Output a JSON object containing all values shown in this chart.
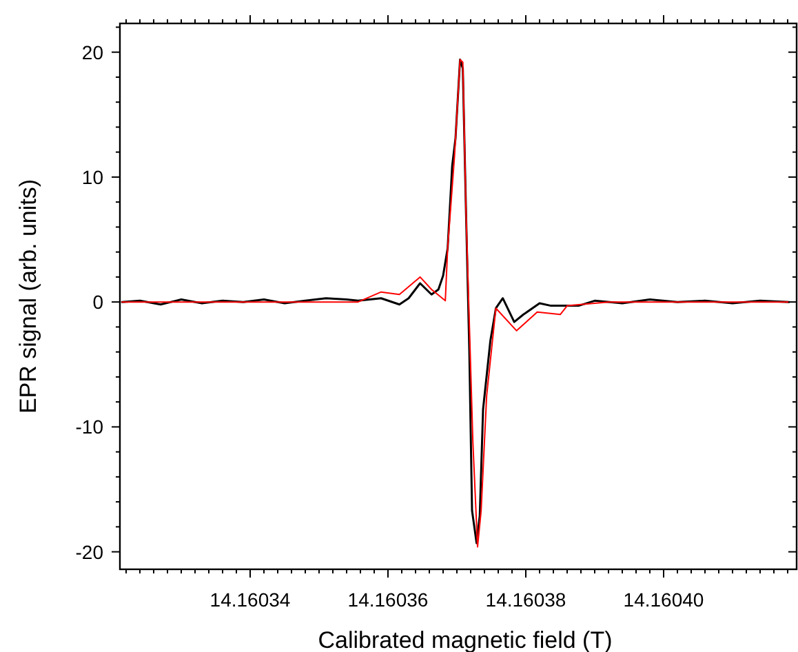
{
  "chart_data": {
    "type": "line",
    "xlabel": "Calibrated magnetic field (T)",
    "ylabel": "EPR signal (arb. units)",
    "xlim": [
      14.1603211,
      14.1604193
    ],
    "ylim": [
      -21.4,
      22.3
    ],
    "xticks": [
      {
        "value": 14.160322,
        "label": null
      },
      {
        "value": 14.160324,
        "label": null
      },
      {
        "value": 14.160326,
        "label": null
      },
      {
        "value": 14.160328,
        "label": null
      },
      {
        "value": 14.16033,
        "label": null
      },
      {
        "value": 14.160332,
        "label": null
      },
      14.16034,
      {
        "value": 14.160334,
        "label": null
      },
      {
        "value": 14.160336,
        "label": null
      },
      {
        "value": 14.160338,
        "label": null
      },
      {
        "value": 14.160342,
        "label": null
      },
      {
        "value": 14.160344,
        "label": null
      },
      {
        "value": 14.160346,
        "label": null
      },
      {
        "value": 14.160348,
        "label": null
      },
      {
        "value": 14.16035,
        "label": null
      },
      {
        "value": 14.160352,
        "label": null
      },
      {
        "value": 14.160354,
        "label": null
      },
      {
        "value": 14.160356,
        "label": null
      },
      {
        "value": 14.160358,
        "label": null
      },
      14.16036,
      {
        "value": 14.160362,
        "label": null
      },
      {
        "value": 14.160364,
        "label": null
      },
      {
        "value": 14.160366,
        "label": null
      },
      {
        "value": 14.160368,
        "label": null
      },
      {
        "value": 14.16037,
        "label": null
      },
      {
        "value": 14.160372,
        "label": null
      },
      {
        "value": 14.160374,
        "label": null
      },
      {
        "value": 14.160376,
        "label": null
      },
      {
        "value": 14.160378,
        "label": null
      },
      14.16038,
      {
        "value": 14.160382,
        "label": null
      },
      {
        "value": 14.160384,
        "label": null
      },
      {
        "value": 14.160386,
        "label": null
      },
      {
        "value": 14.160388,
        "label": null
      },
      {
        "value": 14.16039,
        "label": null
      },
      {
        "value": 14.160392,
        "label": null
      },
      {
        "value": 14.160394,
        "label": null
      },
      {
        "value": 14.160396,
        "label": null
      },
      {
        "value": 14.160398,
        "label": null
      },
      {
        "value": 14.1604,
        "label": "14.16040"
      },
      {
        "value": 14.160402,
        "label": null
      },
      {
        "value": 14.160404,
        "label": null
      },
      {
        "value": 14.160406,
        "label": null
      },
      {
        "value": 14.160408,
        "label": null
      },
      {
        "value": 14.16041,
        "label": null
      },
      {
        "value": 14.160412,
        "label": null
      },
      {
        "value": 14.160414,
        "label": null
      },
      {
        "value": 14.160416,
        "label": null
      },
      {
        "value": 14.160418,
        "label": null
      }
    ],
    "yticks": [
      -20,
      {
        "value": -18,
        "label": null
      },
      {
        "value": -16,
        "label": null
      },
      {
        "value": -14,
        "label": null
      },
      {
        "value": -12,
        "label": null
      },
      -10,
      {
        "value": -8,
        "label": null
      },
      {
        "value": -6,
        "label": null
      },
      {
        "value": -4,
        "label": null
      },
      {
        "value": -2,
        "label": null
      },
      0,
      {
        "value": 2,
        "label": null
      },
      {
        "value": 4,
        "label": null
      },
      {
        "value": 6,
        "label": null
      },
      {
        "value": 8,
        "label": null
      },
      10,
      {
        "value": 12,
        "label": null
      },
      {
        "value": 14,
        "label": null
      },
      {
        "value": 16,
        "label": null
      },
      {
        "value": 18,
        "label": null
      },
      20,
      {
        "value": 22,
        "label": null
      }
    ],
    "grid": false,
    "marker": "none",
    "line_style": "solid",
    "series": [
      {
        "color": "#000000",
        "x": [
          14.1603214,
          14.160324,
          14.160327,
          14.16033,
          14.160333,
          14.160336,
          14.160339,
          14.160342,
          14.160345,
          14.160348,
          14.160351,
          14.160354,
          14.16035566,
          14.160359,
          14.16036166,
          14.160363,
          14.16036466,
          14.16036632,
          14.16036732,
          14.160368,
          14.16036866,
          14.16036932,
          14.1603698,
          14.16037046,
          14.16037086,
          14.16037132,
          14.1603718,
          14.1603722,
          14.16037286,
          14.16037332,
          14.1603738,
          14.16037486,
          14.16037566,
          14.16037666,
          14.16037832,
          14.16037966,
          14.160382,
          14.16038366,
          14.16038766,
          14.16039,
          14.160394,
          14.160398,
          14.160402,
          14.160406,
          14.16041,
          14.160414,
          14.1604182
        ],
        "values": [
          0,
          0.1,
          -0.2,
          0.2,
          -0.1,
          0.1,
          0,
          0.2,
          -0.1,
          0.1,
          0.3,
          0.2,
          0.1,
          0.3,
          -0.2,
          0.3,
          1.5,
          0.6,
          1,
          2.1,
          4.3,
          10.9,
          13.1,
          19.4,
          18.7,
          7.3,
          -3.8,
          -16.7,
          -19.3,
          -17.1,
          -8.6,
          -3.1,
          -0.5,
          0.3,
          -1.6,
          -1.0,
          -0.1,
          -0.3,
          -0.3,
          0.1,
          -0.1,
          0.2,
          0,
          0.1,
          -0.1,
          0.1,
          0
        ]
      },
      {
        "color": "#ff0000",
        "x": [
          14.1603214,
          14.16033,
          14.16034,
          14.16035,
          14.16035566,
          14.160359,
          14.16036166,
          14.16036466,
          14.16036632,
          14.16036832,
          14.16036866,
          14.16036966,
          14.16037046,
          14.16037086,
          14.16037132,
          14.16037232,
          14.160373,
          14.16037352,
          14.16037432,
          14.16037566,
          14.16037866,
          14.16038166,
          14.160385,
          14.160386,
          14.160392,
          14.1604,
          14.1604182
        ],
        "values": [
          0,
          0,
          0,
          0,
          0,
          0.8,
          0.6,
          2.0,
          1.0,
          0.1,
          4.3,
          11.7,
          19.4,
          19.2,
          7.3,
          -11.2,
          -19.6,
          -16.7,
          -7.5,
          -0.5,
          -2.3,
          -0.8,
          -1.0,
          -0.3,
          0,
          0,
          0
        ]
      }
    ]
  }
}
